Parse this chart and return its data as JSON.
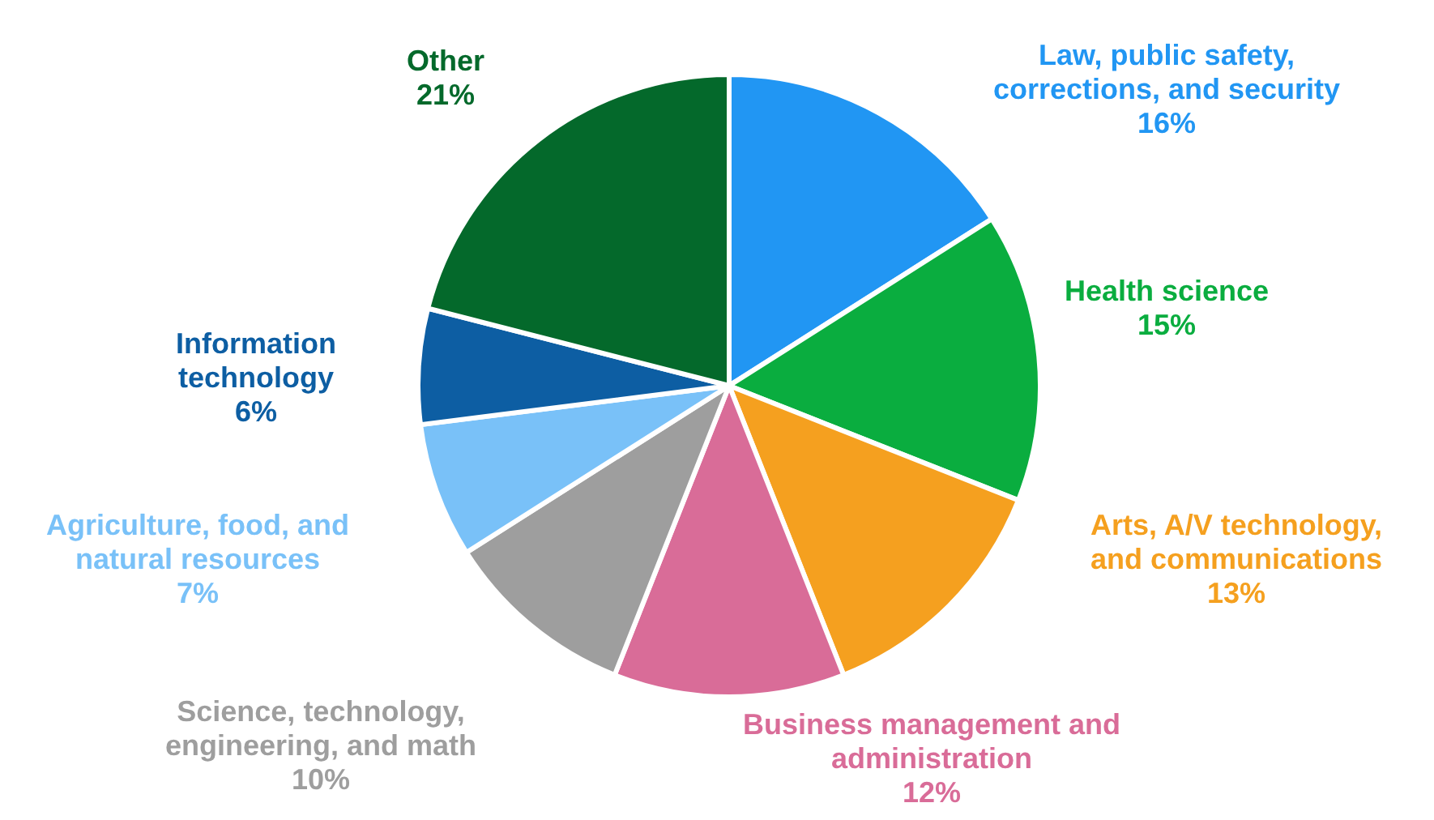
{
  "chart_data": {
    "type": "pie",
    "categories": [
      "Law, public safety, corrections, and security",
      "Health science",
      "Arts, A/V technology, and communications",
      "Business management and administration",
      "Science, technology, engineering, and math",
      "Agriculture, food, and natural resources",
      "Information technology",
      "Other"
    ],
    "values": [
      16,
      15,
      13,
      12,
      10,
      7,
      6,
      21
    ],
    "value_labels": [
      "16%",
      "15%",
      "13%",
      "12%",
      "10%",
      "7%",
      "6%",
      "21%"
    ],
    "colors": [
      "#2196f3",
      "#0aad3f",
      "#f5a01f",
      "#d96c98",
      "#9e9e9e",
      "#79c1f8",
      "#0d5ea3",
      "#04692b"
    ]
  }
}
